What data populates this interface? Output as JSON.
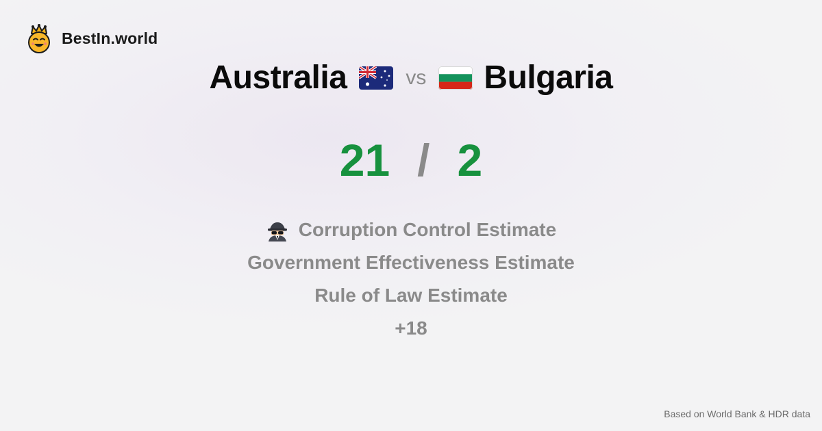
{
  "brand": {
    "name": "BestIn.world",
    "logo_icon": "crowned-smiley-icon"
  },
  "comparison": {
    "left_country": "Australia",
    "left_flag_icon": "australia-flag-icon",
    "vs_label": "vs",
    "right_country": "Bulgaria",
    "right_flag_icon": "bulgaria-flag-icon"
  },
  "score": {
    "left": "21",
    "separator": "/",
    "right": "2",
    "color": "#17913e"
  },
  "metrics": [
    {
      "icon": "spy-icon",
      "label": "Corruption Control Estimate"
    },
    {
      "label": "Government Effectiveness Estimate"
    },
    {
      "label": "Rule of Law Estimate"
    },
    {
      "label": "+18"
    }
  ],
  "footer": {
    "source": "Based on World Bank & HDR data"
  }
}
